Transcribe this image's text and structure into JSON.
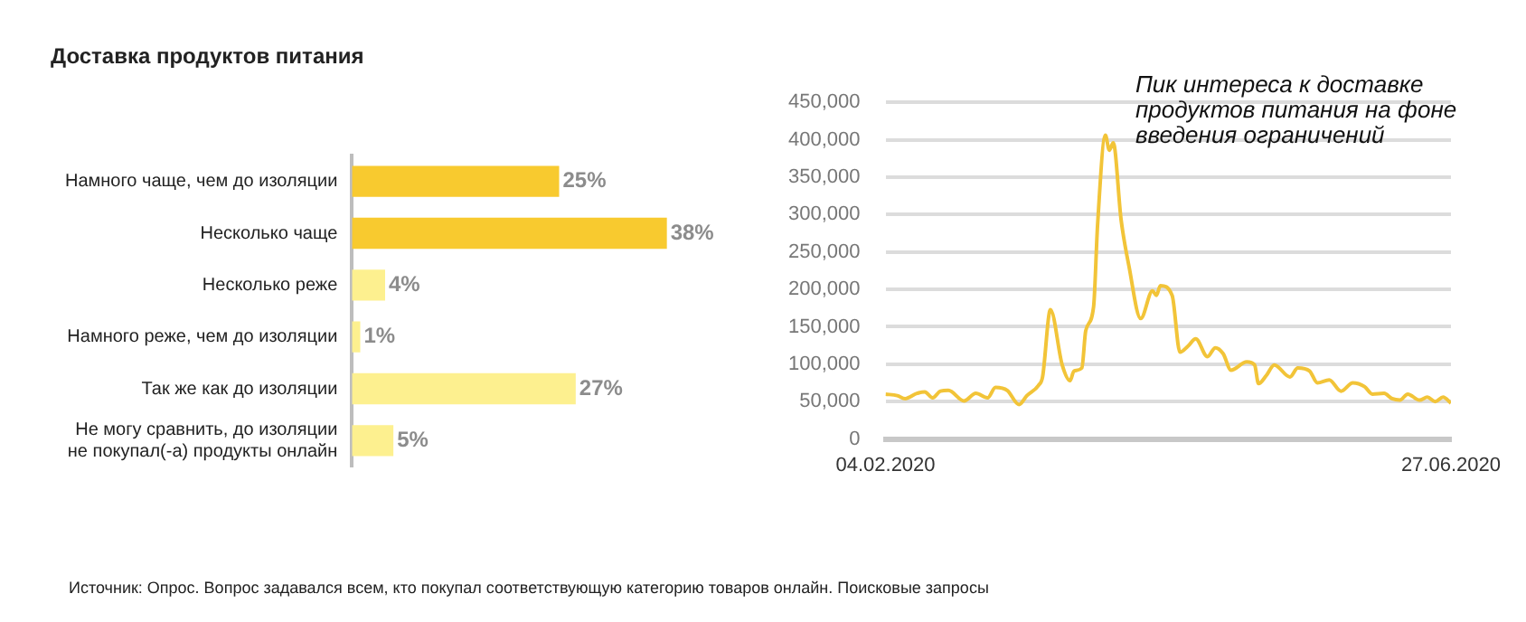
{
  "chart_data": [
    {
      "type": "bar",
      "orientation": "horizontal",
      "title": "Доставка продуктов питания",
      "categories": [
        "Намного чаще, чем до изоляции",
        "Несколько чаще",
        "Несколько реже",
        "Намного реже, чем до изоляции",
        "Так же как до изоляции",
        "Не могу сравнить, до изоляции\nне покупал(-а) продукты онлайн"
      ],
      "values": [
        25,
        38,
        4,
        1,
        27,
        5
      ],
      "colors": [
        "#f8ca2f",
        "#f8ca2f",
        "#fdf08f",
        "#fdf08f",
        "#fdf08f",
        "#fdf08f"
      ],
      "value_labels": [
        "25%",
        "38%",
        "4%",
        "1%",
        "27%",
        "5%"
      ],
      "tick_labels": "y",
      "annotations": [
        "Источник: Опрос. Вопрос задавался всем, кто покупал соответствующую категорию товаров онлайн. Поисковые запросы"
      ]
    },
    {
      "type": "line",
      "color": "#f2c438",
      "marker": "none",
      "line_style": "solid",
      "grid": "y",
      "annotations": [
        "Пик интереса к доставке продуктов питания на фоне введения ограничений"
      ],
      "x": [
        "2020-02-04",
        "2020-02-07",
        "2020-02-09",
        "2020-02-12",
        "2020-02-14",
        "2020-02-16",
        "2020-02-18",
        "2020-02-20",
        "2020-02-24",
        "2020-02-27",
        "2020-03-01",
        "2020-03-03",
        "2020-03-06",
        "2020-03-09",
        "2020-03-11",
        "2020-03-14",
        "2020-03-15",
        "2020-03-17",
        "2020-03-20",
        "2020-03-22",
        "2020-03-23",
        "2020-03-25",
        "2020-03-26",
        "2020-03-28",
        "2020-03-29",
        "2020-03-31",
        "2020-04-01",
        "2020-04-02",
        "2020-04-04",
        "2020-04-06",
        "2020-04-09",
        "2020-04-12",
        "2020-04-13",
        "2020-04-14",
        "2020-04-17",
        "2020-04-19",
        "2020-04-21",
        "2020-04-23",
        "2020-04-26",
        "2020-04-28",
        "2020-04-30",
        "2020-05-02",
        "2020-05-06",
        "2020-05-08",
        "2020-05-09",
        "2020-05-11",
        "2020-05-13",
        "2020-05-17",
        "2020-05-19",
        "2020-05-22",
        "2020-05-24",
        "2020-05-27",
        "2020-05-30",
        "2020-06-02",
        "2020-06-05",
        "2020-06-07",
        "2020-06-10",
        "2020-06-12",
        "2020-06-14",
        "2020-06-16",
        "2020-06-19",
        "2020-06-21",
        "2020-06-23",
        "2020-06-25",
        "2020-06-27"
      ],
      "values": [
        60000,
        58000,
        54000,
        61000,
        63000,
        55000,
        64000,
        65000,
        51000,
        61000,
        55000,
        69000,
        65000,
        46000,
        58000,
        72000,
        83000,
        173000,
        99000,
        78000,
        91000,
        95000,
        145000,
        177000,
        285000,
        406000,
        386000,
        396000,
        293000,
        231000,
        161000,
        198000,
        192000,
        205000,
        192000,
        116000,
        124000,
        134000,
        110000,
        122000,
        114000,
        92000,
        103000,
        99000,
        74000,
        85000,
        99000,
        83000,
        95000,
        91000,
        75000,
        79000,
        64000,
        75000,
        70000,
        60000,
        61000,
        54000,
        52000,
        60000,
        52000,
        56000,
        50000,
        56000,
        48000
      ],
      "xlim": [
        "2020-02-04",
        "2020-06-27"
      ],
      "xticks": [
        {
          "value": "2020-02-04",
          "label": "04.02.2020"
        },
        {
          "value": "2020-06-27",
          "label": "27.06.2020"
        }
      ],
      "ylim": [
        0,
        450000
      ],
      "yticks": [
        0,
        {
          "value": 50000,
          "label": "50,000"
        },
        {
          "value": 100000,
          "label": "100,000"
        },
        {
          "value": 150000,
          "label": "150,000"
        },
        {
          "value": 200000,
          "label": "200,000"
        },
        {
          "value": 250000,
          "label": "250,000"
        },
        {
          "value": 300000,
          "label": "300,000"
        },
        {
          "value": 350000,
          "label": "350,000"
        },
        {
          "value": 400000,
          "label": "400,000"
        },
        {
          "value": 450000,
          "label": "450,000"
        }
      ]
    }
  ]
}
